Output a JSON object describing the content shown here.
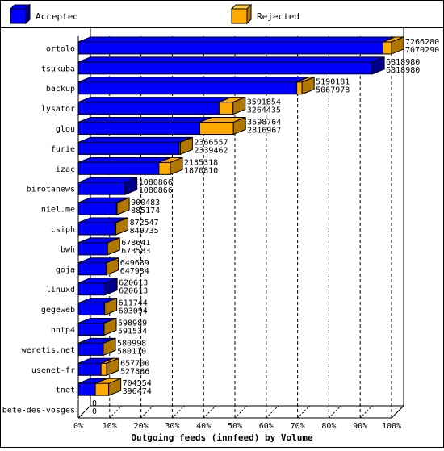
{
  "chart_data": {
    "type": "bar",
    "orientation": "horizontal",
    "stacked_depth": "3d",
    "xlabel": "Outgoing feeds (innfeed) by Volume",
    "ylabel": "",
    "xlim": [
      0,
      100
    ],
    "x_unit": "%",
    "x_ticks": [
      "0%",
      "10%",
      "20%",
      "30%",
      "40%",
      "50%",
      "60%",
      "70%",
      "80%",
      "90%",
      "100%"
    ],
    "grid": "vertical dashed",
    "legend_position": "top",
    "series": [
      {
        "name": "Accepted",
        "color": "#0000ff"
      },
      {
        "name": "Rejected",
        "color": "#ffaa00"
      }
    ],
    "categories": [
      "ortolo",
      "tsukuba",
      "backup",
      "lysator",
      "glou",
      "furie",
      "izac",
      "birotanews",
      "niel.me",
      "csiph",
      "bwh",
      "goja",
      "linuxd",
      "gegeweb",
      "nntp4",
      "weretis.net",
      "usenet-fr",
      "tnet",
      "bete-des-vosges"
    ],
    "offered": [
      7266280,
      6818980,
      5190181,
      3591854,
      3598764,
      2366557,
      2135318,
      1080866,
      900483,
      872547,
      678641,
      649639,
      620613,
      611744,
      598989,
      580998,
      657700,
      704554,
      0
    ],
    "accepted": [
      7070290,
      6818980,
      5067978,
      3264435,
      2816967,
      2339462,
      1870810,
      1080866,
      885174,
      849735,
      673583,
      647934,
      620613,
      603094,
      591534,
      580110,
      527886,
      396474,
      0
    ],
    "offered_labels": [
      "7266280",
      "6818980",
      "5190181",
      "3591854",
      "3598764",
      "2366557",
      "2135318",
      "1080866",
      "900483",
      "872547",
      "678641",
      "649639",
      "620613",
      "611744",
      "598989",
      "580998",
      "657700",
      "704554",
      "0"
    ],
    "accepted_labels": [
      "7070290",
      "6818980",
      "5067978",
      "3264435",
      "2816967",
      "2339462",
      "1870810",
      "1080866",
      "885174",
      "849735",
      "673583",
      "647934",
      "620613",
      "603094",
      "591534",
      "580110",
      "527886",
      "396474",
      "0"
    ]
  }
}
